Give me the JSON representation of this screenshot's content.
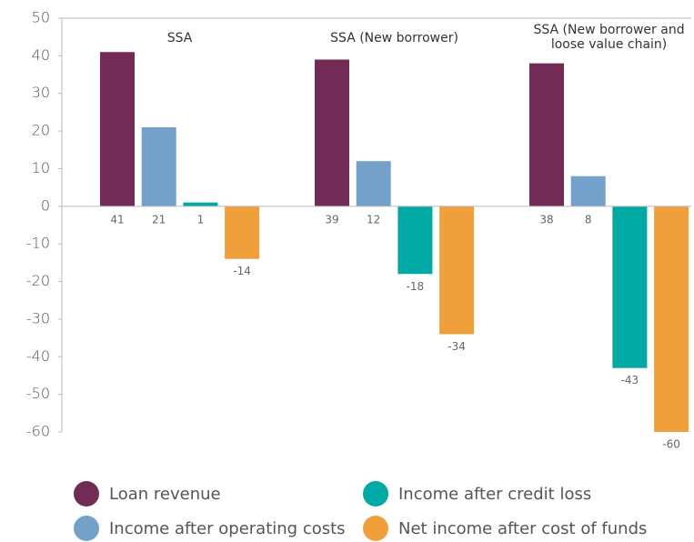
{
  "chart_data": {
    "type": "bar",
    "categories": [
      "SSA",
      "SSA (New borrower)",
      "SSA (New borrower and loose value chain)"
    ],
    "series": [
      {
        "name": "Loan revenue",
        "color": "#722b55",
        "values": [
          41,
          39,
          38
        ]
      },
      {
        "name": "Income after operating costs",
        "color": "#74a1c9",
        "values": [
          21,
          12,
          8
        ]
      },
      {
        "name": "Income after credit loss",
        "color": "#00a9a4",
        "values": [
          1,
          -18,
          -43
        ]
      },
      {
        "name": "Net income after cost of funds",
        "color": "#f0a03b",
        "values": [
          -14,
          -34,
          -60
        ]
      }
    ],
    "ylim": [
      -60,
      50
    ],
    "yticks": [
      -60,
      -50,
      -40,
      -30,
      -20,
      -10,
      0,
      10,
      20,
      30,
      40,
      50
    ],
    "grid": false
  }
}
